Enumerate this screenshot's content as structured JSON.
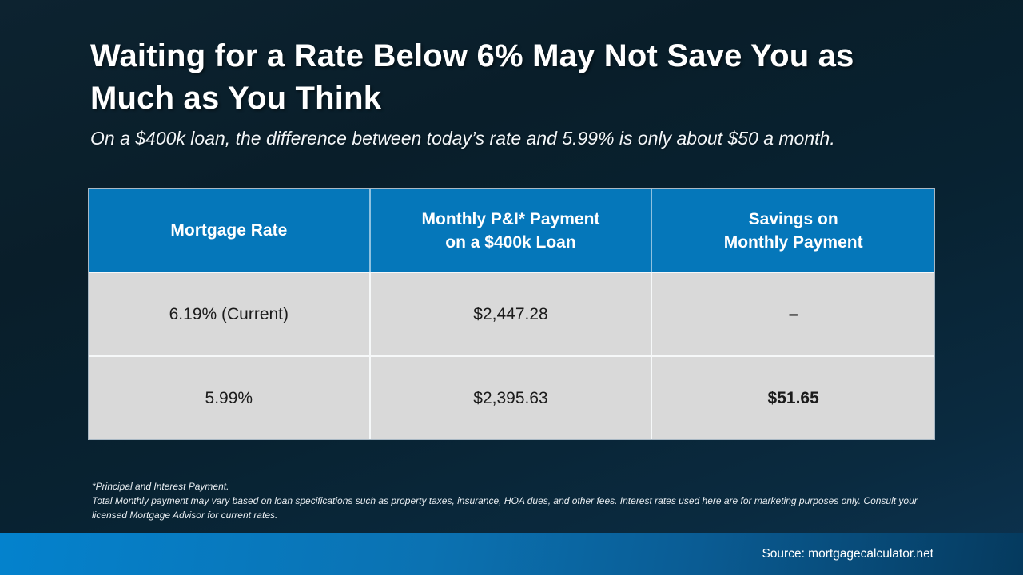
{
  "slide": {
    "title_line1": "Waiting for a Rate Below 6% May Not Save You as",
    "title_line2": "Much as You Think",
    "title_full": "Waiting for a Rate Below 6% May Not Save You as Much as You Think",
    "subtitle": "On a $400k loan, the difference between today’s rate and 5.99% is only about $50 a month.",
    "source": "Source: mortgagecalculator.net"
  },
  "table": {
    "headers": [
      {
        "line1": "Mortgage Rate",
        "line2": ""
      },
      {
        "line1": "Monthly P&I* Payment",
        "line2": "on a $400k Loan"
      },
      {
        "line1": "Savings on",
        "line2": "Monthly Payment"
      }
    ],
    "rows": [
      {
        "rate": "6.19% (Current)",
        "payment": "$2,447.28",
        "savings": "–"
      },
      {
        "rate": "5.99%",
        "payment": "$2,395.63",
        "savings": "$51.65"
      }
    ]
  },
  "footnote": {
    "line1": "*Principal and Interest Payment.",
    "line2": "Total Monthly payment may vary based on loan specifications such as property taxes, insurance, HOA dues, and other fees. Interest rates used here are for marketing purposes only. Consult your licensed Mortgage Advisor for current rates."
  },
  "colors": {
    "header_blue": "#0577ba",
    "row_gray": "#d9d9d9",
    "background_navy": "#0a2434",
    "bar_gradient_left": "#0482cd",
    "bar_gradient_right": "#053a5e"
  }
}
